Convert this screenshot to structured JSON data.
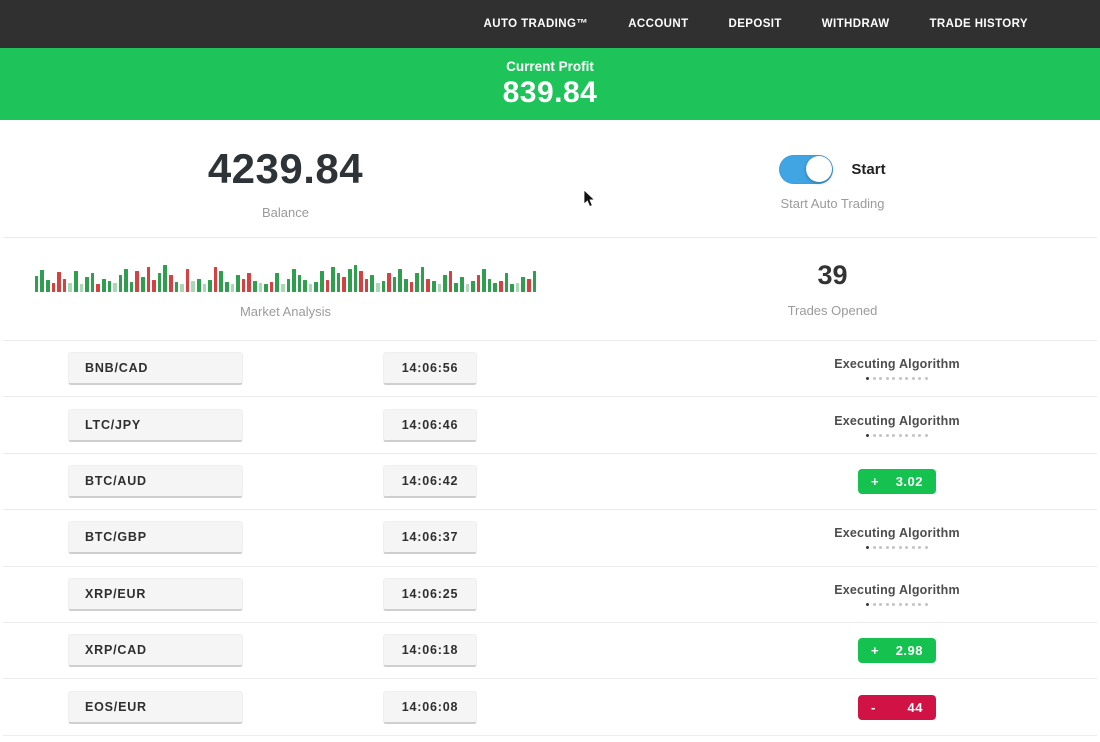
{
  "nav": {
    "items": [
      "AUTO TRADING™",
      "ACCOUNT",
      "DEPOSIT",
      "WITHDRAW",
      "TRADE HISTORY"
    ]
  },
  "profit_banner": {
    "label": "Current Profit",
    "value": "839.84",
    "bg_color": "#1ec45a"
  },
  "account": {
    "balance": "4239.84",
    "balance_label": "Balance",
    "toggle_state": "on",
    "toggle_label": "Start",
    "toggle_caption": "Start Auto Trading",
    "toggle_color": "#41a5e4"
  },
  "market": {
    "label": "Market Analysis",
    "trades_opened": "39",
    "trades_label": "Trades Opened",
    "bar_colors": {
      "g": "#2e9e4f",
      "r": "#d64040",
      "G": "#a9d8b5",
      "R": "#ecabab"
    },
    "bars": [
      "g16",
      "g22",
      "g12",
      "r9",
      "r20",
      "r13",
      "G9",
      "g21",
      "G8",
      "g15",
      "g19",
      "r8",
      "g13",
      "g11",
      "G9",
      "g17",
      "g23",
      "g10",
      "r21",
      "g15",
      "r25",
      "r12",
      "g19",
      "g27",
      "r17",
      "g10",
      "G8",
      "r23",
      "G11",
      "g13",
      "G8",
      "g12",
      "r25",
      "g21",
      "g10",
      "G8",
      "g17",
      "r13",
      "r19",
      "g11",
      "G9",
      "g8",
      "r10",
      "g19",
      "G8",
      "g13",
      "g23",
      "g17",
      "g12",
      "G8",
      "g10",
      "g21",
      "r12",
      "g25",
      "g19",
      "r15",
      "g23",
      "g27",
      "r21",
      "r13",
      "g17",
      "G9",
      "g11",
      "r19",
      "g15",
      "g23",
      "g13",
      "r10",
      "g19",
      "g25",
      "r13",
      "g11",
      "G8",
      "g17",
      "r21",
      "g9",
      "g15",
      "G8",
      "g11",
      "r17",
      "g23",
      "g13",
      "g9",
      "r11",
      "g19",
      "g8",
      "G9",
      "g15",
      "r13",
      "g21"
    ]
  },
  "trades": {
    "executing_label": "Executing Algorithm",
    "loader_dots": 10,
    "profit_color": "#15c24f",
    "loss_color": "#d01245",
    "rows": [
      {
        "pair": "BNB/CAD",
        "time": "14:06:56",
        "status": "executing",
        "sign": "",
        "value": ""
      },
      {
        "pair": "LTC/JPY",
        "time": "14:06:46",
        "status": "executing",
        "sign": "",
        "value": ""
      },
      {
        "pair": "BTC/AUD",
        "time": "14:06:42",
        "status": "profit",
        "sign": "+",
        "value": "3.02"
      },
      {
        "pair": "BTC/GBP",
        "time": "14:06:37",
        "status": "executing",
        "sign": "",
        "value": ""
      },
      {
        "pair": "XRP/EUR",
        "time": "14:06:25",
        "status": "executing",
        "sign": "",
        "value": ""
      },
      {
        "pair": "XRP/CAD",
        "time": "14:06:18",
        "status": "profit",
        "sign": "+",
        "value": "2.98"
      },
      {
        "pair": "EOS/EUR",
        "time": "14:06:08",
        "status": "loss",
        "sign": "-",
        "value": "44"
      }
    ]
  }
}
